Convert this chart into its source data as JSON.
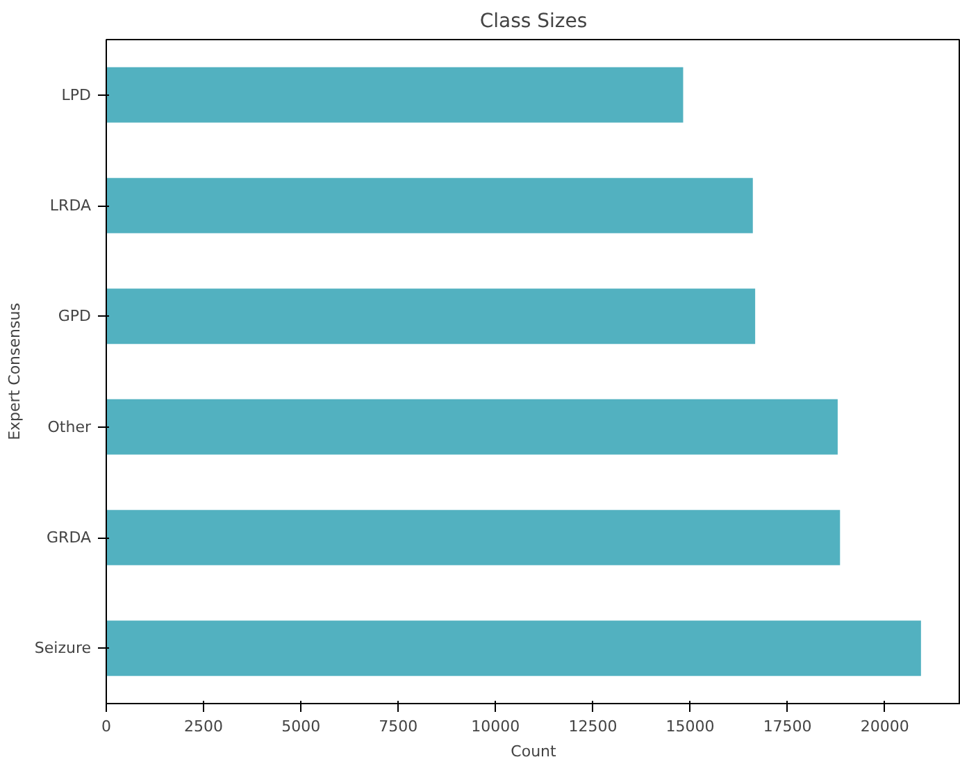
{
  "chart_data": {
    "type": "bar",
    "orientation": "horizontal",
    "title": "Class Sizes",
    "xlabel": "Count",
    "ylabel": "Expert Consensus",
    "categories": [
      "LPD",
      "LRDA",
      "GPD",
      "Other",
      "GRDA",
      "Seizure"
    ],
    "values": [
      14820,
      16610,
      16670,
      18790,
      18850,
      20930
    ],
    "color": "#52b1c0",
    "xlim": [
      0,
      21950
    ],
    "xticks": [
      0,
      2500,
      5000,
      7500,
      10000,
      12500,
      15000,
      17500,
      20000
    ],
    "grid": false
  }
}
